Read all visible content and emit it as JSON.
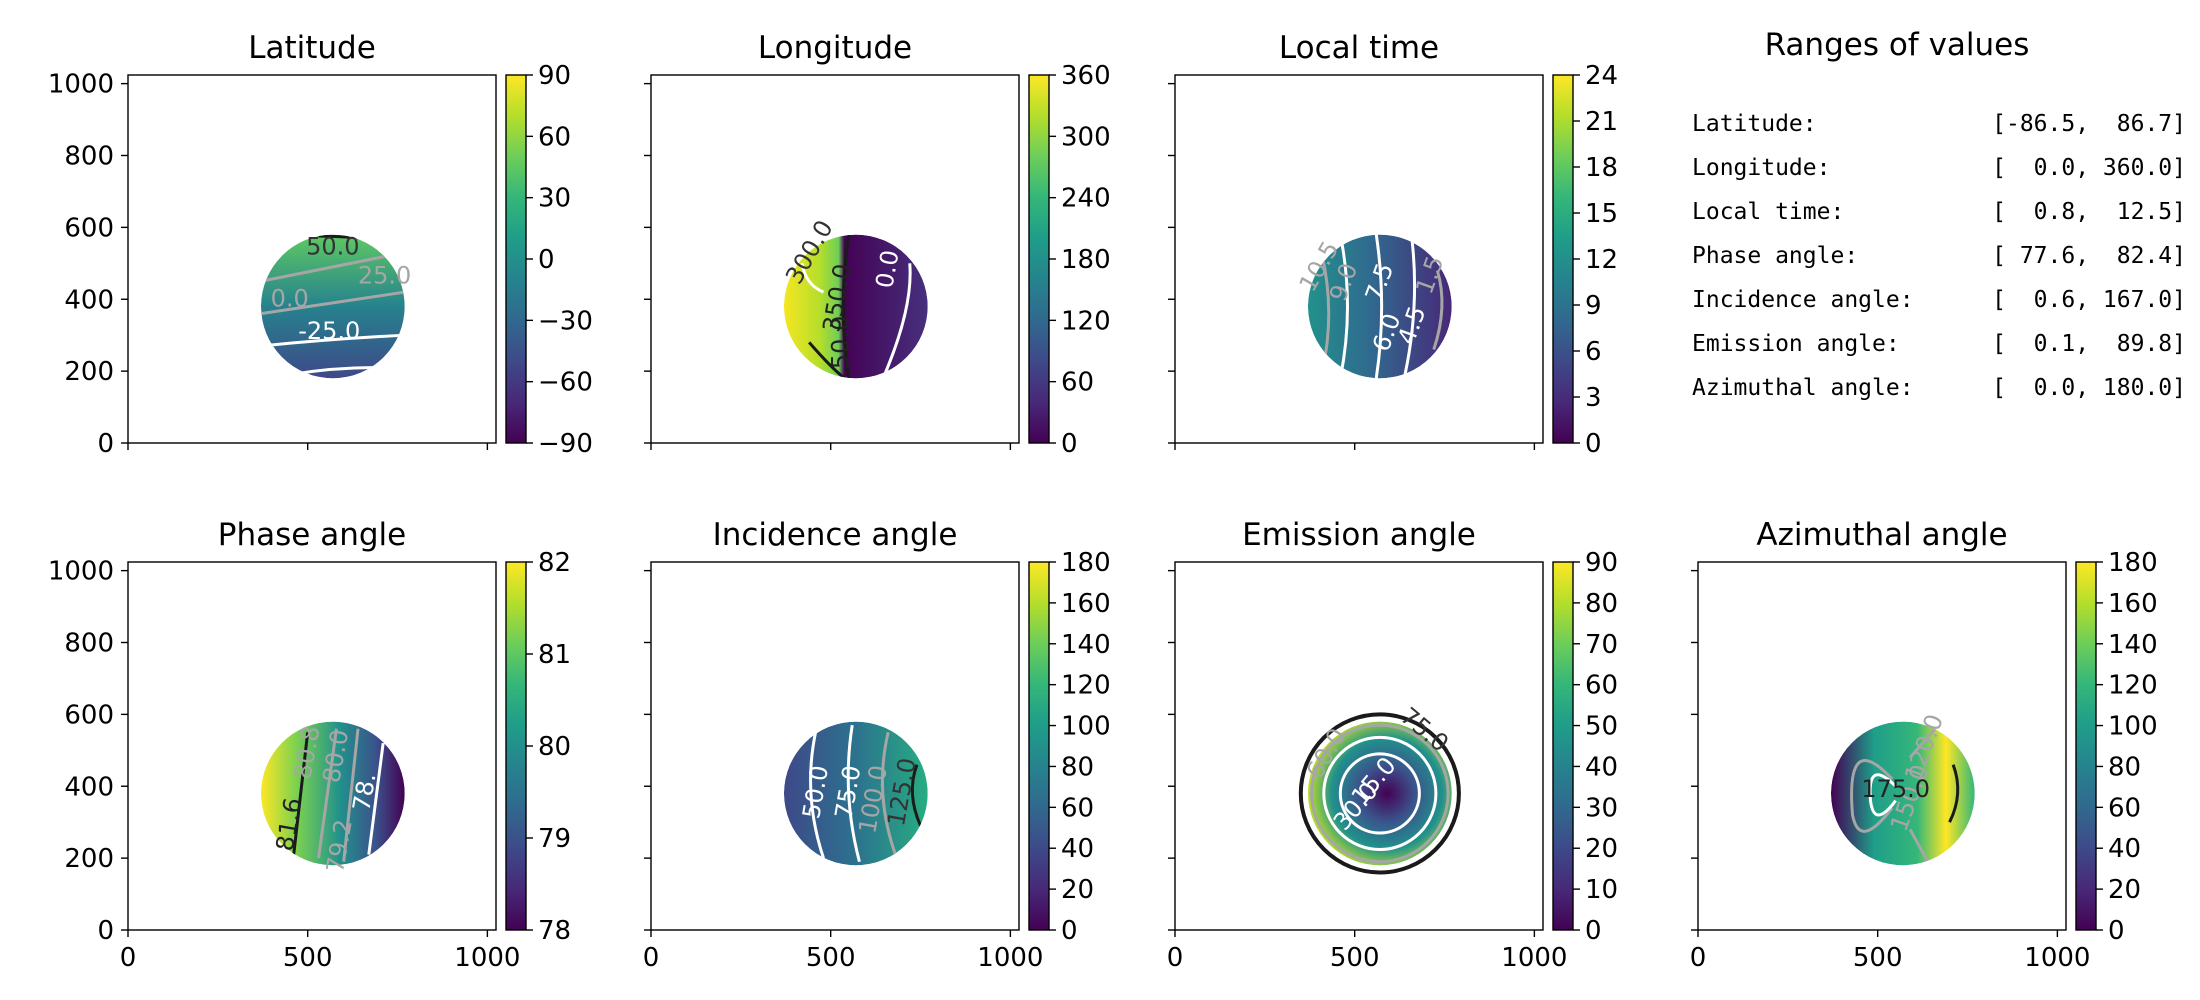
{
  "colors": {
    "viridis": [
      "#440154",
      "#482878",
      "#3e4989",
      "#31688e",
      "#26828e",
      "#1f9e89",
      "#35b779",
      "#6ece58",
      "#b5de2b",
      "#fde725"
    ],
    "contour_light": "#ffffff",
    "contour_mid": "#a6a6a6",
    "contour_dark": "#1a1a1a"
  },
  "ranges_panel": {
    "title": "Ranges of values",
    "rows": [
      {
        "label": "Latitude:",
        "value": "[-86.5,  86.7]"
      },
      {
        "label": "Longitude:",
        "value": "[  0.0, 360.0]"
      },
      {
        "label": "Local time:",
        "value": "[  0.8,  12.5]"
      },
      {
        "label": "Phase angle:",
        "value": "[ 77.6,  82.4]"
      },
      {
        "label": "Incidence angle:",
        "value": "[  0.6, 167.0]"
      },
      {
        "label": "Emission angle:",
        "value": "[  0.1,  89.8]"
      },
      {
        "label": "Azimuthal angle:",
        "value": "[  0.0, 180.0]"
      }
    ]
  },
  "chart_data": [
    {
      "type": "heatmap",
      "title": "Latitude",
      "x_ticks": [
        "0",
        "500",
        "1000"
      ],
      "y_ticks": [
        "0",
        "200",
        "400",
        "600",
        "800",
        "1000"
      ],
      "xlim": [
        0,
        1024
      ],
      "ylim": [
        0,
        1024
      ],
      "disk": {
        "cx": 570,
        "cy": 380,
        "r": 200
      },
      "colorbar": {
        "ticks": [
          "90",
          "60",
          "30",
          "0",
          "−30",
          "−60",
          "−90"
        ]
      },
      "contour_labels": [
        "50.0",
        "25.0",
        "0.0",
        "-25.0"
      ]
    },
    {
      "type": "heatmap",
      "title": "Longitude",
      "x_ticks": [
        "0",
        "500",
        "1000"
      ],
      "y_ticks": [
        "0",
        "200",
        "400",
        "600",
        "800",
        "1000"
      ],
      "xlim": [
        0,
        1024
      ],
      "ylim": [
        0,
        1024
      ],
      "disk": {
        "cx": 570,
        "cy": 380,
        "r": 200
      },
      "colorbar": {
        "ticks": [
          "360",
          "300",
          "240",
          "180",
          "120",
          "60",
          "0"
        ]
      },
      "contour_labels": [
        "300.0",
        "350.0",
        "50.0",
        "0.0"
      ]
    },
    {
      "type": "heatmap",
      "title": "Local time",
      "x_ticks": [
        "0",
        "500",
        "1000"
      ],
      "y_ticks": [
        "0",
        "200",
        "400",
        "600",
        "800",
        "1000"
      ],
      "xlim": [
        0,
        1024
      ],
      "ylim": [
        0,
        1024
      ],
      "disk": {
        "cx": 570,
        "cy": 380,
        "r": 200
      },
      "colorbar": {
        "ticks": [
          "24",
          "21",
          "18",
          "15",
          "12",
          "9",
          "6",
          "3",
          "0"
        ]
      },
      "contour_labels": [
        "10.5",
        "9.0",
        "7.5",
        "6.0",
        "4.5",
        "1.5"
      ]
    },
    {
      "type": "heatmap",
      "title": "Phase angle",
      "x_ticks": [
        "0",
        "500",
        "1000"
      ],
      "y_ticks": [
        "0",
        "200",
        "400",
        "600",
        "800",
        "1000"
      ],
      "xlim": [
        0,
        1024
      ],
      "ylim": [
        0,
        1024
      ],
      "disk": {
        "cx": 570,
        "cy": 380,
        "r": 200
      },
      "colorbar": {
        "ticks": [
          "82",
          "81",
          "80",
          "79",
          "78"
        ]
      },
      "contour_labels": [
        "80.8",
        "80.0",
        "78.",
        "81.6",
        "79.2"
      ]
    },
    {
      "type": "heatmap",
      "title": "Incidence angle",
      "x_ticks": [
        "0",
        "500",
        "1000"
      ],
      "y_ticks": [
        "0",
        "200",
        "400",
        "600",
        "800",
        "1000"
      ],
      "xlim": [
        0,
        1024
      ],
      "ylim": [
        0,
        1024
      ],
      "disk": {
        "cx": 570,
        "cy": 380,
        "r": 200
      },
      "colorbar": {
        "ticks": [
          "180",
          "160",
          "140",
          "120",
          "100",
          "80",
          "60",
          "40",
          "20",
          "0"
        ]
      },
      "contour_labels": [
        "50.0",
        "75.0",
        "100.0",
        "125.0"
      ]
    },
    {
      "type": "heatmap",
      "title": "Emission angle",
      "x_ticks": [
        "0",
        "500",
        "1000"
      ],
      "y_ticks": [
        "0",
        "200",
        "400",
        "600",
        "800",
        "1000"
      ],
      "xlim": [
        0,
        1024
      ],
      "ylim": [
        0,
        1024
      ],
      "disk": {
        "cx": 570,
        "cy": 380,
        "r": 200
      },
      "colorbar": {
        "ticks": [
          "90",
          "80",
          "70",
          "60",
          "50",
          "40",
          "30",
          "20",
          "10",
          "0"
        ]
      },
      "contour_labels": [
        "75.0",
        "60.0",
        "15.0",
        "30.0"
      ]
    },
    {
      "type": "heatmap",
      "title": "Azimuthal angle",
      "x_ticks": [
        "0",
        "500",
        "1000"
      ],
      "y_ticks": [
        "0",
        "200",
        "400",
        "600",
        "800",
        "1000"
      ],
      "xlim": [
        0,
        1024
      ],
      "ylim": [
        0,
        1024
      ],
      "disk": {
        "cx": 570,
        "cy": 380,
        "r": 200
      },
      "colorbar": {
        "ticks": [
          "180",
          "160",
          "140",
          "120",
          "100",
          "80",
          "60",
          "40",
          "20",
          "0"
        ]
      },
      "contour_labels": [
        "120.0",
        "150.0",
        "175.0"
      ]
    }
  ]
}
